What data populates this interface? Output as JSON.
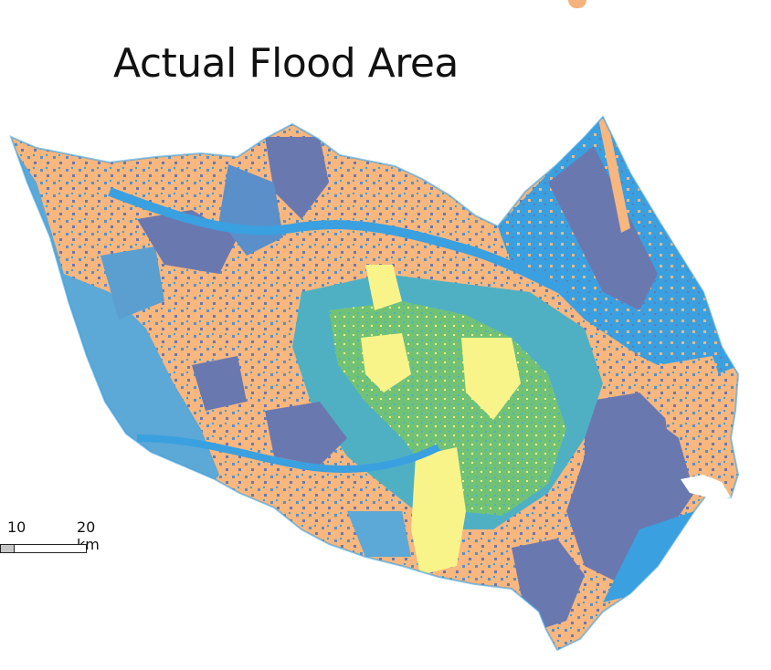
{
  "title": "Actual Flood Area",
  "scale_bar": {
    "labels": [
      "10",
      "20 km"
    ]
  },
  "colors": {
    "sand": "#f7b77f",
    "sky": "#3aa0e0",
    "steel": "#5b8fc9",
    "slate": "#6a78b0",
    "green": "#72c276",
    "yellow": "#f8f48a",
    "teal": "#4fb0c4"
  }
}
